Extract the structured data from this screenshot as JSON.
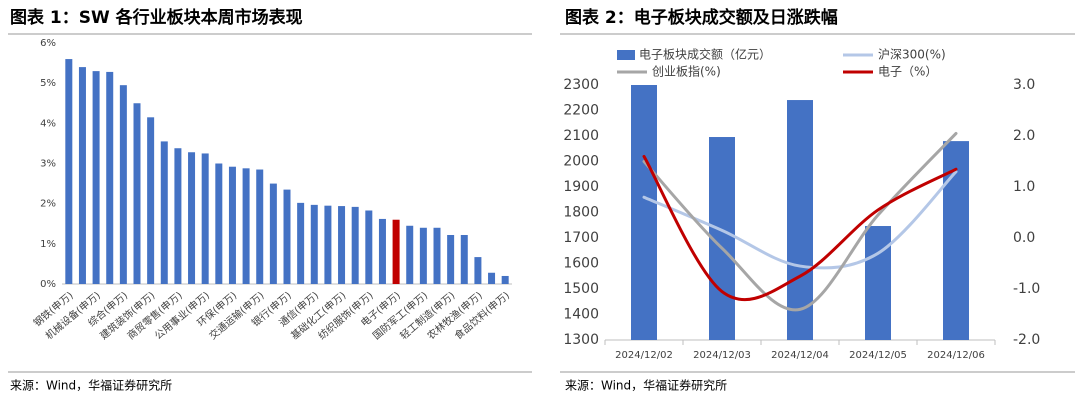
{
  "chart_data": [
    {
      "type": "bar",
      "title": "图表 1：SW 各行业板块本周市场表现",
      "source": "来源：Wind，华福证券研究所",
      "categories": [
        "钢铁(申万)",
        null,
        "机械设备(申万)",
        null,
        "综合(申万)",
        null,
        "建筑装饰(申万)",
        null,
        "商贸零售(申万)",
        null,
        "公用事业(申万)",
        null,
        "环保(申万)",
        null,
        "交通运输(申万)",
        null,
        "银行(申万)",
        null,
        "通信(申万)",
        null,
        "基础化工(申万)",
        null,
        "纺织服饰(申万)",
        null,
        "电子(申万)",
        null,
        "国防军工(申万)",
        null,
        "轻工制造(申万)",
        null,
        "农林牧渔(申万)",
        null,
        "食品饮料(申万)"
      ],
      "values": [
        5.6,
        5.4,
        5.3,
        5.28,
        4.95,
        4.5,
        4.15,
        3.55,
        3.38,
        3.28,
        3.25,
        3.0,
        2.92,
        2.88,
        2.85,
        2.5,
        2.35,
        2.02,
        1.97,
        1.95,
        1.94,
        1.92,
        1.83,
        1.62,
        1.6,
        1.45,
        1.4,
        1.4,
        1.22,
        1.22,
        0.67,
        0.28,
        0.2
      ],
      "colors": [
        "#4472c4",
        "#4472c4",
        "#4472c4",
        "#4472c4",
        "#4472c4",
        "#4472c4",
        "#4472c4",
        "#4472c4",
        "#4472c4",
        "#4472c4",
        "#4472c4",
        "#4472c4",
        "#4472c4",
        "#4472c4",
        "#4472c4",
        "#4472c4",
        "#4472c4",
        "#4472c4",
        "#4472c4",
        "#4472c4",
        "#4472c4",
        "#4472c4",
        "#4472c4",
        "#4472c4",
        "#c00000",
        "#4472c4",
        "#4472c4",
        "#4472c4",
        "#4472c4",
        "#4472c4",
        "#4472c4",
        "#4472c4",
        "#4472c4"
      ],
      "ylim": [
        0,
        6
      ],
      "yticks": [
        {
          "value": 0,
          "label": "0%"
        },
        {
          "value": 1,
          "label": "1%"
        },
        {
          "value": 2,
          "label": "2%"
        },
        {
          "value": 3,
          "label": "3%"
        },
        {
          "value": 4,
          "label": "4%"
        },
        {
          "value": 5,
          "label": "5%"
        },
        {
          "value": 6,
          "label": "6%"
        }
      ]
    },
    {
      "type": "bar_line",
      "title": "图表 2：电子板块成交额及日涨跌幅",
      "source": "来源：Wind，华福证券研究所",
      "categories": [
        "2024/12/02",
        "2024/12/03",
        "2024/12/04",
        "2024/12/05",
        "2024/12/06"
      ],
      "series": [
        {
          "name": "电子板块成交额（亿元）",
          "type": "bar",
          "color": "#4472c4",
          "values": [
            2300,
            2096,
            2241,
            1747,
            2080
          ]
        },
        {
          "name": "沪深300(%)",
          "type": "line",
          "axis": "y2",
          "color": "#b4c7e7",
          "values": [
            0.8,
            0.15,
            -0.55,
            -0.3,
            1.3
          ]
        },
        {
          "name": "创业板指(%)",
          "type": "line",
          "axis": "y2",
          "color": "#a6a6a6",
          "values": [
            1.5,
            -0.2,
            -1.4,
            0.45,
            2.05
          ]
        },
        {
          "name": "电子（%）",
          "type": "line",
          "axis": "y2",
          "color": "#c00000",
          "values": [
            1.6,
            -1.05,
            -0.75,
            0.55,
            1.35
          ]
        }
      ],
      "ylim": [
        1300,
        2300
      ],
      "yticks": [
        1300,
        1400,
        1500,
        1600,
        1700,
        1800,
        1900,
        2000,
        2100,
        2200,
        2300
      ],
      "y2lim": [
        -2,
        3
      ],
      "y2ticks": [
        {
          "value": -2,
          "label": "-2.0"
        },
        {
          "value": -1,
          "label": "-1.0"
        },
        {
          "value": 0,
          "label": "0.0"
        },
        {
          "value": 1,
          "label": "1.0"
        },
        {
          "value": 2,
          "label": "2.0"
        },
        {
          "value": 3,
          "label": "3.0"
        }
      ]
    }
  ]
}
